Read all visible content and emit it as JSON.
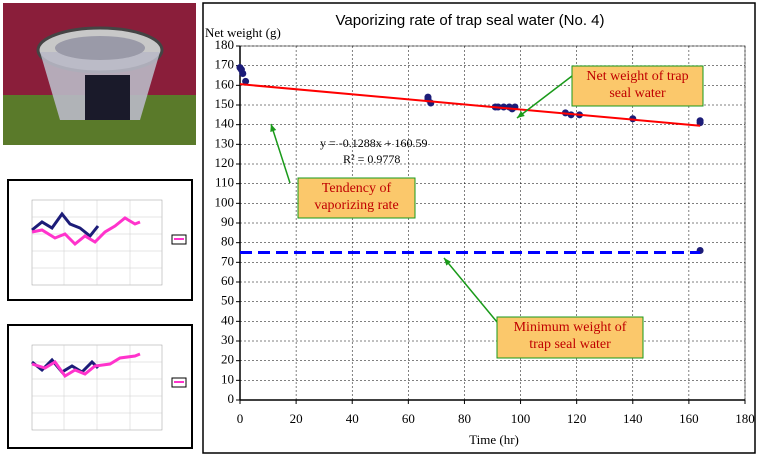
{
  "chart_data": {
    "type": "scatter",
    "title": "Vaporizing rate of trap seal water (No. 4)",
    "x_label": "Time (hr)",
    "y_label": "Net weight (g)",
    "xlim": [
      0,
      180
    ],
    "xticks": [
      0,
      20,
      40,
      60,
      80,
      100,
      120,
      140,
      160,
      180
    ],
    "ylim": [
      0,
      180
    ],
    "yticks": [
      0,
      10,
      20,
      30,
      40,
      50,
      60,
      70,
      80,
      90,
      100,
      110,
      120,
      130,
      140,
      150,
      160,
      170,
      180
    ],
    "grid": true,
    "series": [
      {
        "style": "markers",
        "color": "#1c1c78",
        "x": [
          0,
          0.5,
          1,
          2,
          67,
          67,
          68,
          91,
          92,
          94,
          96,
          97,
          98,
          116,
          118,
          121,
          140,
          164,
          164,
          164
        ],
        "values": [
          169,
          168,
          166,
          162,
          153,
          154,
          151,
          149,
          149,
          149,
          149,
          148,
          149,
          146,
          145,
          145,
          143,
          142,
          141,
          76
        ]
      },
      {
        "style": "solid",
        "color": "#ff0000",
        "x": [
          0,
          164
        ],
        "values": [
          160.59,
          139.47
        ]
      },
      {
        "style": "dashed",
        "color": "#0000ff",
        "x": [
          0,
          164
        ],
        "values": [
          75,
          75
        ]
      }
    ],
    "annotations": [
      "y = -0.1288x + 160.59",
      "R² = 0.9778"
    ],
    "callouts": [
      [
        "Net weight of trap",
        "seal water"
      ],
      [
        "Tendency of",
        "vaporizing rate"
      ],
      [
        "Minimum weight of",
        "trap seal water"
      ]
    ]
  }
}
